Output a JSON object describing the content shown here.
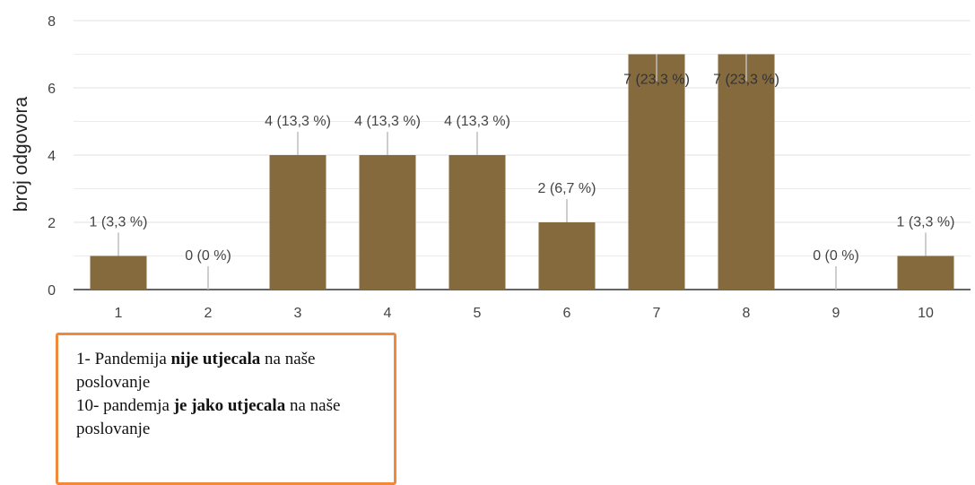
{
  "chart_data": {
    "type": "bar",
    "categories": [
      "1",
      "2",
      "3",
      "4",
      "5",
      "6",
      "7",
      "8",
      "9",
      "10"
    ],
    "values": [
      1,
      0,
      4,
      4,
      4,
      2,
      7,
      7,
      0,
      1
    ],
    "data_labels": [
      "1 (3,3 %)",
      "0 (0 %)",
      "4 (13,3 %)",
      "4 (13,3 %)",
      "4 (13,3 %)",
      "2 (6,7 %)",
      "7 (23,3 %)",
      "7 (23,3 %)",
      "0 (0 %)",
      "1 (3,3 %)"
    ],
    "ylabel": "broj odgovora",
    "ylim": [
      0,
      8
    ],
    "yticks": [
      0,
      2,
      4,
      6,
      8
    ],
    "grid": true,
    "colors": {
      "bar": "#856a3e",
      "grid": "#e6e6e6",
      "axis": "#333333",
      "label_line": "#bdbdbd",
      "text": "#444444"
    }
  },
  "legend_note": {
    "line1_pre": "1- Pandemija ",
    "line1_bold": "nije utjecala",
    "line1_post": " na naše poslovanje",
    "line2_pre": "10- pandemja ",
    "line2_bold": "je jako utjecala",
    "line2_post": " na naše poslovanje",
    "border_color": "#f08a3a"
  }
}
